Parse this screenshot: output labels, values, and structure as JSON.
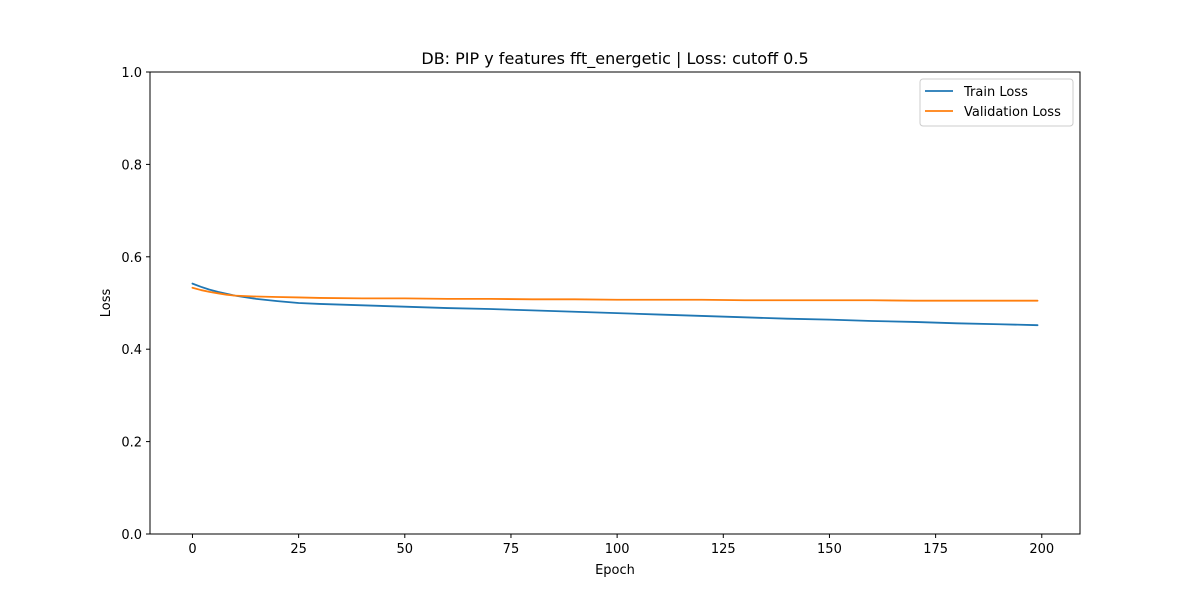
{
  "chart_data": {
    "type": "line",
    "title": "DB: PIP y features fft_energetic | Loss: cutoff 0.5",
    "xlabel": "Epoch",
    "ylabel": "Loss",
    "xlim": [
      -10,
      209
    ],
    "ylim": [
      0,
      1
    ],
    "x_ticks": [
      0,
      25,
      50,
      75,
      100,
      125,
      150,
      175,
      200
    ],
    "y_ticks": [
      0.0,
      0.2,
      0.4,
      0.6,
      0.8,
      1.0
    ],
    "y_tick_labels": [
      "0.0",
      "0.2",
      "0.4",
      "0.6",
      "0.8",
      "1.0"
    ],
    "grid": false,
    "legend_position": "top-right",
    "x": [
      0,
      2,
      4,
      6,
      8,
      10,
      15,
      20,
      25,
      30,
      40,
      50,
      60,
      70,
      80,
      90,
      100,
      110,
      120,
      130,
      140,
      150,
      160,
      170,
      180,
      190,
      199
    ],
    "series": [
      {
        "name": "Train Loss",
        "color": "#1f77b4",
        "values": [
          0.542,
          0.535,
          0.529,
          0.524,
          0.52,
          0.516,
          0.509,
          0.504,
          0.5,
          0.498,
          0.495,
          0.492,
          0.489,
          0.487,
          0.484,
          0.481,
          0.478,
          0.475,
          0.472,
          0.469,
          0.466,
          0.464,
          0.461,
          0.459,
          0.456,
          0.454,
          0.452
        ]
      },
      {
        "name": "Validation Loss",
        "color": "#ff7f0e",
        "values": [
          0.533,
          0.528,
          0.524,
          0.521,
          0.518,
          0.516,
          0.514,
          0.513,
          0.512,
          0.511,
          0.51,
          0.51,
          0.509,
          0.509,
          0.508,
          0.508,
          0.507,
          0.507,
          0.507,
          0.506,
          0.506,
          0.506,
          0.506,
          0.505,
          0.505,
          0.505,
          0.505
        ]
      }
    ]
  }
}
